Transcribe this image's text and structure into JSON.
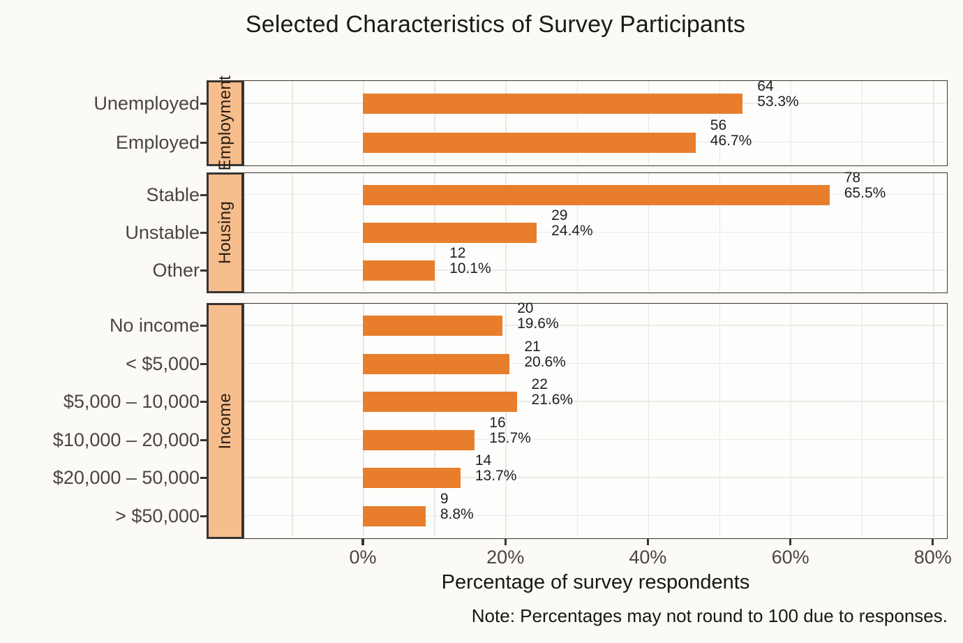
{
  "chart_data": {
    "type": "bar",
    "orientation": "horizontal",
    "title": "Selected Characteristics of Survey Participants",
    "xlabel": "Percentage of survey respondents",
    "note": "Note: Percentages may not round to 100 due to responses.",
    "x_unit": "percent",
    "xlim_pct": [
      -16.5,
      82
    ],
    "grid": "vertical lines every 10%, horizontal line at each category; light gray",
    "legend": "none",
    "x_ticks": [
      {
        "label": "0%",
        "value": 0
      },
      {
        "label": "20%",
        "value": 20
      },
      {
        "label": "40%",
        "value": 40
      },
      {
        "label": "60%",
        "value": 60
      },
      {
        "label": "80%",
        "value": 80
      }
    ],
    "facets": [
      {
        "name": "Employment",
        "rows": [
          {
            "label": "Unemployed",
            "count": "64",
            "pct": 53.3,
            "pct_label": "53.3%"
          },
          {
            "label": "Employed",
            "count": "56",
            "pct": 46.7,
            "pct_label": "46.7%"
          }
        ]
      },
      {
        "name": "Housing",
        "rows": [
          {
            "label": "Stable",
            "count": "78",
            "pct": 65.5,
            "pct_label": "65.5%"
          },
          {
            "label": "Unstable",
            "count": "29",
            "pct": 24.4,
            "pct_label": "24.4%"
          },
          {
            "label": "Other",
            "count": "12",
            "pct": 10.1,
            "pct_label": "10.1%"
          }
        ]
      },
      {
        "name": "Income",
        "rows": [
          {
            "label": "No income",
            "count": "20",
            "pct": 19.6,
            "pct_label": "19.6%"
          },
          {
            "label": "< $5,000",
            "count": "21",
            "pct": 20.6,
            "pct_label": "20.6%"
          },
          {
            "label": "$5,000 – 10,000",
            "count": "22",
            "pct": 21.6,
            "pct_label": "21.6%"
          },
          {
            "label": "$10,000 – 20,000",
            "count": "16",
            "pct": 15.7,
            "pct_label": "15.7%"
          },
          {
            "label": "$20,000 – 50,000",
            "count": "14",
            "pct": 13.7,
            "pct_label": "13.7%"
          },
          {
            "label": "> $50,000",
            "count": "9",
            "pct": 8.8,
            "pct_label": "8.8%"
          }
        ]
      }
    ],
    "colors": {
      "bar": "#E87E2C",
      "strip_fill": "#F6BD8D",
      "strip_border": "#39342F",
      "panel_border": "#3A3631",
      "grid": "#E9E7E4",
      "axis_text": "#4A4542",
      "value_text": "#201F1D",
      "title_text": "#1B1A18",
      "background": "#FBFAF7"
    }
  }
}
